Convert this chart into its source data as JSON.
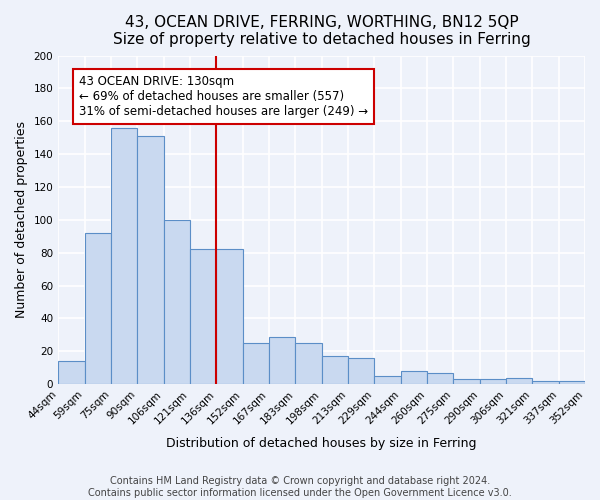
{
  "title": "43, OCEAN DRIVE, FERRING, WORTHING, BN12 5QP",
  "subtitle": "Size of property relative to detached houses in Ferring",
  "xlabel": "Distribution of detached houses by size in Ferring",
  "ylabel": "Number of detached properties",
  "categories": [
    "44sqm",
    "59sqm",
    "75sqm",
    "90sqm",
    "106sqm",
    "121sqm",
    "136sqm",
    "152sqm",
    "167sqm",
    "183sqm",
    "198sqm",
    "213sqm",
    "229sqm",
    "244sqm",
    "260sqm",
    "275sqm",
    "290sqm",
    "306sqm",
    "321sqm",
    "337sqm",
    "352sqm"
  ],
  "values": [
    14,
    92,
    156,
    151,
    100,
    82,
    82,
    25,
    29,
    25,
    17,
    16,
    5,
    8,
    7,
    3,
    3,
    4,
    2,
    2
  ],
  "bar_color": "#c9d9f0",
  "bar_edge_color": "#5b8ec7",
  "vline_color": "#cc0000",
  "annotation_text": "43 OCEAN DRIVE: 130sqm\n← 69% of detached houses are smaller (557)\n31% of semi-detached houses are larger (249) →",
  "annotation_box_color": "#ffffff",
  "annotation_box_edge": "#cc0000",
  "ylim": [
    0,
    200
  ],
  "yticks": [
    0,
    20,
    40,
    60,
    80,
    100,
    120,
    140,
    160,
    180,
    200
  ],
  "footer1": "Contains HM Land Registry data © Crown copyright and database right 2024.",
  "footer2": "Contains public sector information licensed under the Open Government Licence v3.0.",
  "bg_color": "#eef2fa",
  "plot_bg_color": "#eef2fa",
  "grid_color": "#ffffff",
  "title_fontsize": 11,
  "subtitle_fontsize": 10,
  "xlabel_fontsize": 9,
  "ylabel_fontsize": 9,
  "tick_fontsize": 7.5,
  "annotation_fontsize": 8.5,
  "footer_fontsize": 7
}
